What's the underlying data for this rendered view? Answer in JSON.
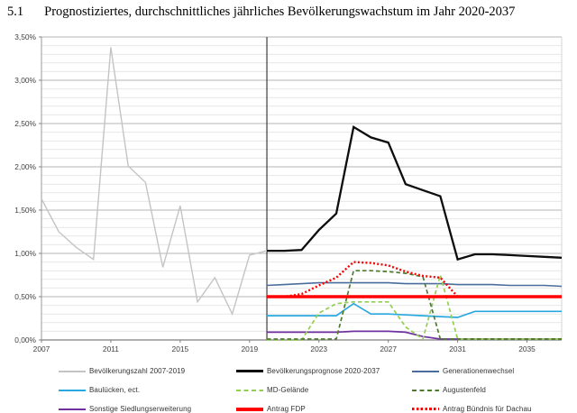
{
  "page": {
    "heading_number": "5.1",
    "heading_title": "Prognostiziertes, durchschnittliches jährliches Bevölkerungswachstum im Jahr 2020-2037"
  },
  "chart_data": {
    "type": "line",
    "title": "",
    "xlabel": "",
    "ylabel": "",
    "x_range": [
      2007,
      2037
    ],
    "ylim": [
      0,
      3.5
    ],
    "y_unit": "%",
    "grid": true,
    "minor_grid_step": 0.1,
    "major_grid_step": 0.5,
    "forecast_divider_year": 2020,
    "legend_position": "bottom",
    "x_tick_labels": [
      "2007",
      "2011",
      "2015",
      "2019",
      "2023",
      "2027",
      "2031",
      "2035"
    ],
    "y_tick_labels": [
      "0,00%",
      "0,50%",
      "1,00%",
      "1,50%",
      "2,00%",
      "2,50%",
      "3,00%",
      "3,50%"
    ],
    "series": [
      {
        "name": "Bevölkerungszahl 2007-2019",
        "color": "#c4c4c4",
        "style": "solid",
        "width": 1.4,
        "start_year": 2007,
        "values": [
          1.63,
          1.25,
          1.07,
          0.93,
          3.38,
          2.01,
          1.82,
          0.84,
          1.55,
          0.44,
          0.72,
          0.3,
          0.98,
          1.03
        ]
      },
      {
        "name": "Bevölkerungsprognose 2020-2037",
        "color": "#0d0d0d",
        "style": "solid",
        "width": 2.3,
        "start_year": 2020,
        "values": [
          1.03,
          1.03,
          1.04,
          1.27,
          1.46,
          2.46,
          2.34,
          2.28,
          1.8,
          1.73,
          1.66,
          0.93,
          0.99,
          0.99,
          0.98,
          0.97,
          0.96,
          0.95
        ]
      },
      {
        "name": "Generationenwechsel",
        "color": "#4a6d9b",
        "style": "solid",
        "width": 1.6,
        "start_year": 2020,
        "values": [
          0.63,
          0.64,
          0.65,
          0.66,
          0.66,
          0.66,
          0.66,
          0.66,
          0.65,
          0.65,
          0.65,
          0.64,
          0.64,
          0.64,
          0.63,
          0.63,
          0.63,
          0.62
        ]
      },
      {
        "name": "Baulücken, ect.",
        "color": "#29a8e0",
        "style": "solid",
        "width": 1.7,
        "start_year": 2020,
        "values": [
          0.28,
          0.28,
          0.28,
          0.28,
          0.28,
          0.42,
          0.3,
          0.3,
          0.29,
          0.28,
          0.27,
          0.26,
          0.33,
          0.33,
          0.33,
          0.33,
          0.33,
          0.33
        ]
      },
      {
        "name": "MD-Gelände",
        "color": "#92d050",
        "style": "dashed",
        "width": 1.7,
        "start_year": 2020,
        "values": [
          0.0,
          0.0,
          0.0,
          0.31,
          0.42,
          0.44,
          0.44,
          0.44,
          0.15,
          0.01,
          0.75,
          0.01,
          0.01,
          0.01,
          0.01,
          0.01,
          0.01,
          0.01
        ]
      },
      {
        "name": "Augustenfeld",
        "color": "#4e7b2e",
        "style": "dashed",
        "width": 1.7,
        "start_year": 2020,
        "values": [
          0.01,
          0.01,
          0.01,
          0.01,
          0.01,
          0.8,
          0.8,
          0.79,
          0.77,
          0.73,
          0.01,
          0.01,
          0.01,
          0.01,
          0.01,
          0.01,
          0.01,
          0.01
        ]
      },
      {
        "name": "Sonstige Siedlungserweiterung",
        "color": "#7030a0",
        "style": "solid",
        "width": 1.7,
        "start_year": 2020,
        "values": [
          0.09,
          0.09,
          0.09,
          0.09,
          0.09,
          0.1,
          0.1,
          0.1,
          0.09,
          0.04,
          0.01,
          0.01,
          0.01,
          0.01,
          0.01,
          0.01,
          0.01,
          0.01
        ]
      },
      {
        "name": "Antrag FDP",
        "color": "#fe0000",
        "style": "solid",
        "width": 3.4,
        "start_year": 2020,
        "values": [
          0.5,
          0.5,
          0.5,
          0.5,
          0.5,
          0.5,
          0.5,
          0.5,
          0.5,
          0.5,
          0.5,
          0.5,
          0.5,
          0.5,
          0.5,
          0.5,
          0.5,
          0.5
        ]
      },
      {
        "name": "Antrag Bündnis für Dachau",
        "color": "#fe0000",
        "style": "dotted",
        "width": 2.4,
        "start_year": 2020,
        "values": [
          0.5,
          0.5,
          0.53,
          0.63,
          0.72,
          0.9,
          0.89,
          0.86,
          0.79,
          0.74,
          0.72,
          0.5,
          0.5,
          0.5,
          0.5,
          0.5,
          0.5,
          0.5
        ]
      }
    ]
  }
}
